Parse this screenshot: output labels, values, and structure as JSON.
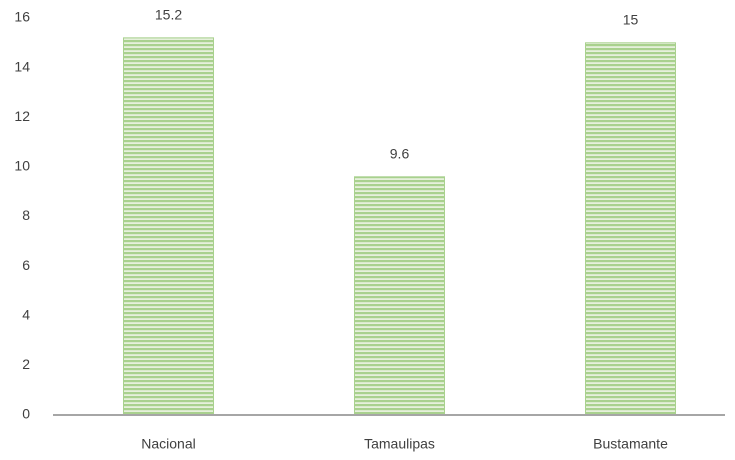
{
  "chart_data": {
    "type": "bar",
    "categories": [
      "Nacional",
      "Tamaulipas",
      "Bustamante"
    ],
    "values": [
      15.2,
      9.6,
      15
    ],
    "color": "#a9d18e",
    "ylim": [
      0,
      16
    ],
    "yticks": [
      0,
      2,
      4,
      6,
      8,
      10,
      12,
      14,
      16
    ],
    "grid": false
  }
}
